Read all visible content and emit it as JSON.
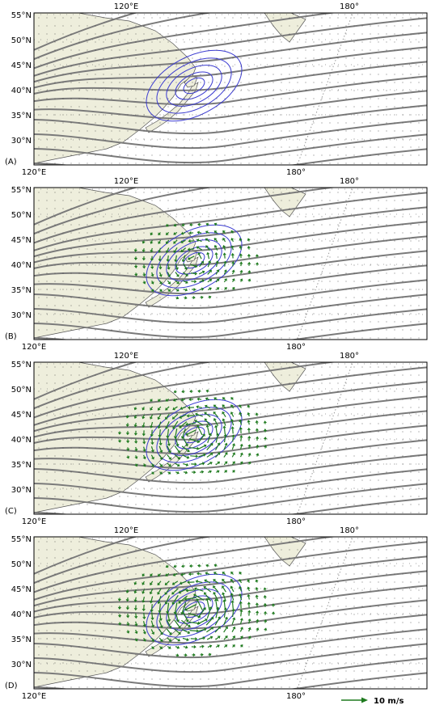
{
  "figure": {
    "panels": [
      {
        "label": "(A)",
        "wind_strength": 0.0
      },
      {
        "label": "(B)",
        "wind_strength": 0.45
      },
      {
        "label": "(C)",
        "wind_strength": 0.8
      },
      {
        "label": "(D)",
        "wind_strength": 1.0
      }
    ],
    "top_lon_labels": [
      "120°E",
      "180°"
    ],
    "bottom_lon_labels": [
      "120°E",
      "180°"
    ],
    "lat_labels": [
      "55°N",
      "50°N",
      "45°N",
      "40°N",
      "35°N",
      "30°N"
    ],
    "legend": {
      "label": "10 m/s",
      "color": "#1e7a1e"
    },
    "colors": {
      "land": "#eeeedc",
      "streamline": "#7a7a7a",
      "contour": "#3a3ad0",
      "vector": "#1e7a1e",
      "coast": "#555555"
    }
  }
}
